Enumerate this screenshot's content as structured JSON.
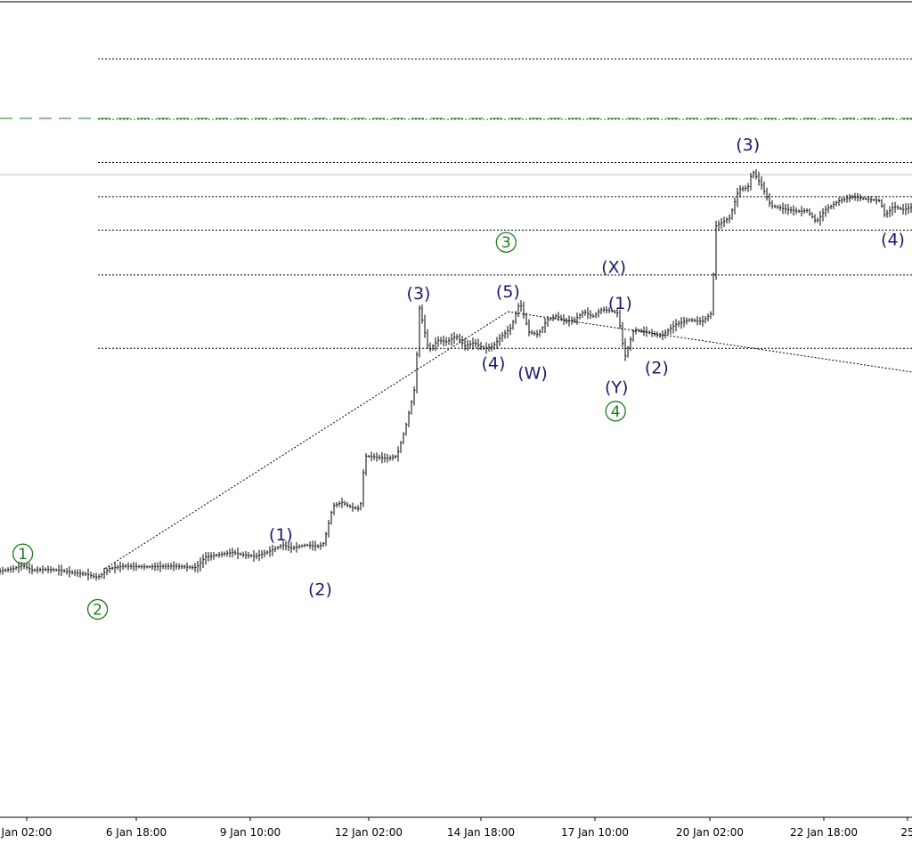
{
  "chart_data": {
    "type": "line",
    "title": "",
    "xlabel": "",
    "ylabel": "",
    "x_ticks": [
      "Jan 02:00",
      "6 Jan 18:00",
      "9 Jan 10:00",
      "12 Jan 02:00",
      "14 Jan 18:00",
      "17 Jan 10:00",
      "20 Jan 02:00",
      "22 Jan 18:00",
      "25"
    ],
    "xlim": [
      0,
      100
    ],
    "ylim": [
      0,
      100
    ],
    "colors": {
      "price": "#000000",
      "wave_label": "#1a1a6e",
      "wave_label_major": "#1f7a1f",
      "target_line": "#1f7a1f",
      "level_line": "#000000",
      "current_price_line": "#c0c0c0"
    },
    "price_path": [
      [
        0,
        30.2
      ],
      [
        1.5,
        30.5
      ],
      [
        2.5,
        30.9
      ],
      [
        3.5,
        30.3
      ],
      [
        5,
        30.4
      ],
      [
        6.5,
        30.3
      ],
      [
        8,
        30.0
      ],
      [
        9.5,
        29.8
      ],
      [
        10.7,
        29.4
      ],
      [
        12,
        30.5
      ],
      [
        13.5,
        30.8
      ],
      [
        16,
        30.7
      ],
      [
        19,
        30.8
      ],
      [
        21.5,
        30.6
      ],
      [
        22.5,
        31.9
      ],
      [
        24,
        32.2
      ],
      [
        25.5,
        32.5
      ],
      [
        26.5,
        32.2
      ],
      [
        28,
        32.0
      ],
      [
        29.5,
        32.6
      ],
      [
        31,
        33.4
      ],
      [
        32,
        33.0
      ],
      [
        33.5,
        33.4
      ],
      [
        35,
        33.2
      ],
      [
        35.5,
        33.6
      ],
      [
        36.5,
        38.2
      ],
      [
        37.5,
        38.6
      ],
      [
        38.5,
        38.0
      ],
      [
        39.5,
        37.8
      ],
      [
        40,
        44.3
      ],
      [
        41,
        44.2
      ],
      [
        42.5,
        44.0
      ],
      [
        43.5,
        44.3
      ],
      [
        44.5,
        48.0
      ],
      [
        45.5,
        52.8
      ],
      [
        46,
        62.5
      ],
      [
        47,
        57.2
      ],
      [
        48,
        58.5
      ],
      [
        49,
        58.3
      ],
      [
        50,
        59.0
      ],
      [
        51,
        57.8
      ],
      [
        52,
        58.2
      ],
      [
        53,
        57.5
      ],
      [
        54,
        57.7
      ],
      [
        55,
        59.0
      ],
      [
        56,
        60.0
      ],
      [
        57,
        63.2
      ],
      [
        58,
        59.5
      ],
      [
        59,
        59.2
      ],
      [
        60,
        61.0
      ],
      [
        61,
        61.5
      ],
      [
        62,
        60.8
      ],
      [
        63,
        61.0
      ],
      [
        64,
        62.0
      ],
      [
        65,
        61.4
      ],
      [
        66,
        62.3
      ],
      [
        67,
        62.1
      ],
      [
        67.8,
        61.8
      ],
      [
        68,
        60.0
      ],
      [
        68.5,
        56.4
      ],
      [
        69.5,
        59.8
      ],
      [
        71,
        59.5
      ],
      [
        72.5,
        59.0
      ],
      [
        74,
        60.4
      ],
      [
        75.5,
        61.0
      ],
      [
        77,
        60.8
      ],
      [
        78,
        61.8
      ],
      [
        78.5,
        72.5
      ],
      [
        80,
        73.5
      ],
      [
        81,
        77.0
      ],
      [
        82,
        77.2
      ],
      [
        82.5,
        79.3
      ],
      [
        83.5,
        77.5
      ],
      [
        84.5,
        75.0
      ],
      [
        86,
        74.6
      ],
      [
        87.5,
        74.3
      ],
      [
        88.5,
        74.4
      ],
      [
        89.5,
        73.0
      ],
      [
        90.5,
        74.5
      ],
      [
        92,
        75.6
      ],
      [
        93.5,
        76.1
      ],
      [
        95,
        75.8
      ],
      [
        96.5,
        75.6
      ],
      [
        97,
        73.8
      ],
      [
        98,
        74.9
      ],
      [
        99,
        74.5
      ],
      [
        100,
        74.8
      ]
    ],
    "levels": [
      93.0,
      80.3,
      76.1,
      72.0,
      66.5,
      57.5
    ],
    "target_level": 85.7,
    "current_price": 78.8,
    "channel_line": [
      [
        11.5,
        30.5
      ],
      [
        55.7,
        62.0
      ]
    ],
    "trend_line": [
      [
        55.7,
        62.0
      ],
      [
        100,
        54.6
      ]
    ],
    "annotations": [
      {
        "text": "(1)",
        "x": 30.8,
        "y": 34.6,
        "kind": "minor"
      },
      {
        "text": "(2)",
        "x": 35.1,
        "y": 27.9,
        "kind": "minor"
      },
      {
        "text": "(3)",
        "x": 45.9,
        "y": 64.2,
        "kind": "minor"
      },
      {
        "text": "(4)",
        "x": 54.1,
        "y": 55.6,
        "kind": "minor"
      },
      {
        "text": "(5)",
        "x": 55.7,
        "y": 64.4,
        "kind": "minor"
      },
      {
        "text": "(W)",
        "x": 58.4,
        "y": 54.4,
        "kind": "minor"
      },
      {
        "text": "(X)",
        "x": 67.3,
        "y": 67.4,
        "kind": "minor"
      },
      {
        "text": "(1)",
        "x": 68.0,
        "y": 63.0,
        "kind": "minor"
      },
      {
        "text": "(Y)",
        "x": 67.6,
        "y": 52.7,
        "kind": "minor"
      },
      {
        "text": "(2)",
        "x": 72.0,
        "y": 55.1,
        "kind": "minor"
      },
      {
        "text": "(3)",
        "x": 82.0,
        "y": 82.4,
        "kind": "minor"
      },
      {
        "text": "(4)",
        "x": 97.9,
        "y": 70.8,
        "kind": "minor"
      },
      {
        "text": "1",
        "x": 2.5,
        "y": 32.3,
        "kind": "major"
      },
      {
        "text": "2",
        "x": 10.7,
        "y": 25.5,
        "kind": "major"
      },
      {
        "text": "3",
        "x": 55.5,
        "y": 70.5,
        "kind": "major"
      },
      {
        "text": "4",
        "x": 67.5,
        "y": 49.8,
        "kind": "major"
      }
    ]
  }
}
